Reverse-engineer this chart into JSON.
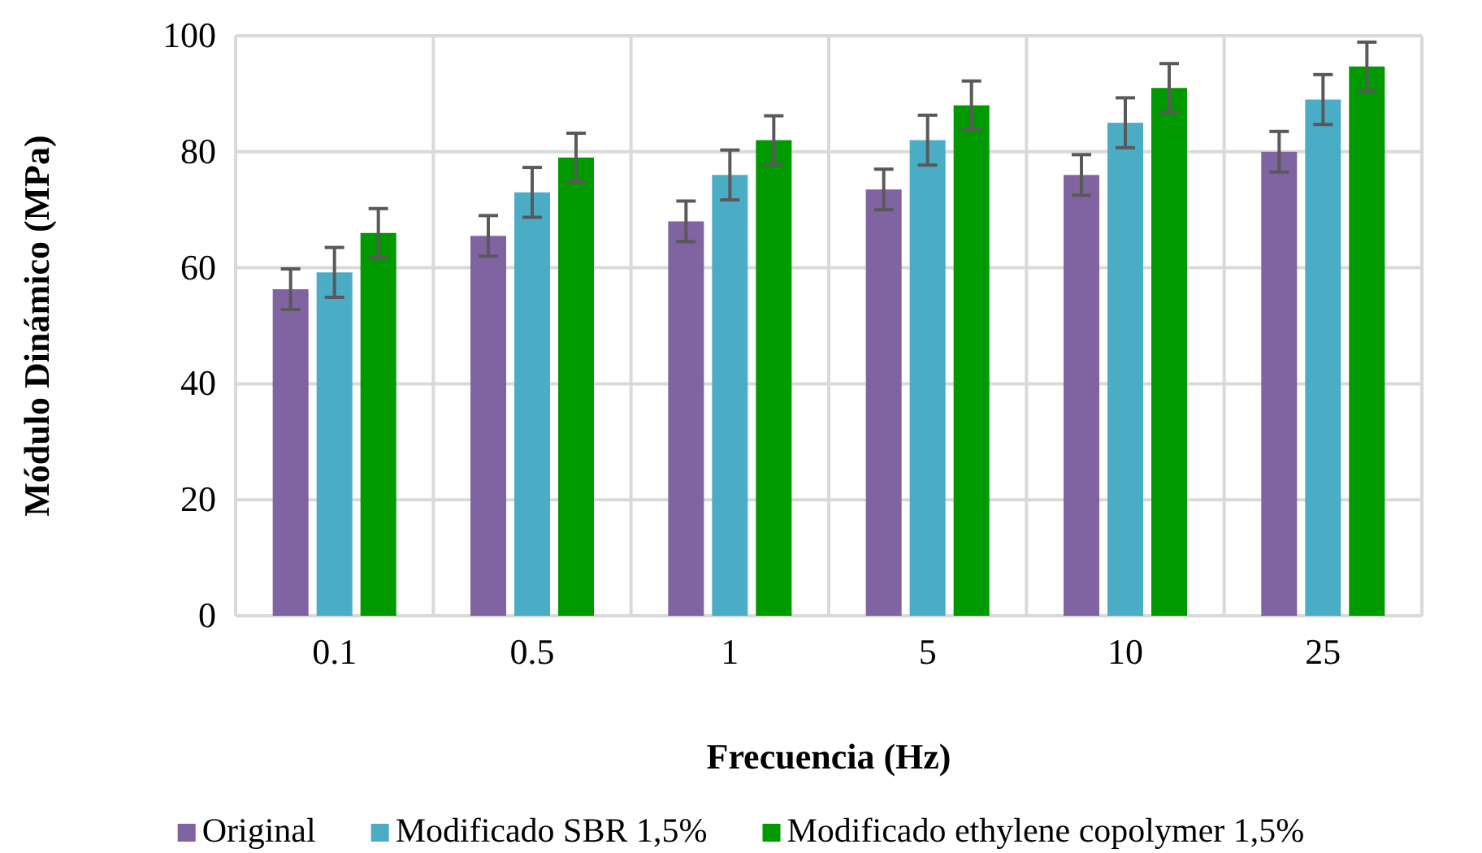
{
  "chart_data": {
    "type": "bar",
    "xlabel": "Frecuencia (Hz)",
    "ylabel": "Módulo Dinámico (MPa)",
    "categories": [
      "0.1",
      "0.5",
      "1",
      "5",
      "10",
      "25"
    ],
    "series": [
      {
        "name": "Original",
        "color": "#8064a2",
        "values": [
          56.3,
          65.5,
          68,
          73.5,
          76,
          80
        ],
        "errors": [
          3.5,
          3.5,
          3.5,
          3.5,
          3.5,
          3.5
        ]
      },
      {
        "name": "Modificado SBR 1,5%",
        "color": "#4bacc6",
        "values": [
          59.2,
          73,
          76,
          82,
          85,
          89
        ],
        "errors": [
          4.3,
          4.3,
          4.3,
          4.3,
          4.3,
          4.3
        ]
      },
      {
        "name": "Modificado ethylene copolymer 1,5%",
        "color": "#009900",
        "values": [
          66,
          79,
          82,
          88,
          91,
          94.7
        ],
        "errors": [
          4.2,
          4.2,
          4.2,
          4.2,
          4.2,
          4.2
        ]
      }
    ],
    "ylim": [
      0,
      100
    ],
    "yticks": [
      0,
      20,
      40,
      60,
      80,
      100
    ],
    "grid": true,
    "legend": "bottom"
  }
}
